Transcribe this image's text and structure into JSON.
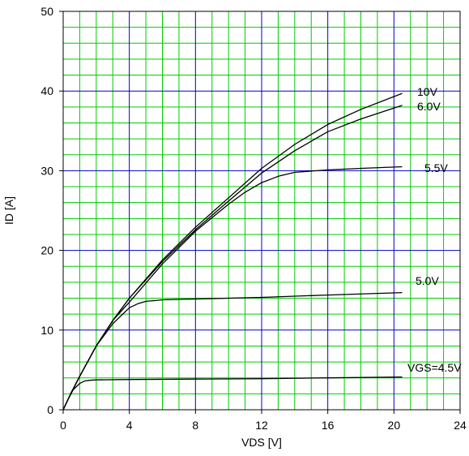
{
  "chart_data": {
    "type": "line",
    "xlabel": "VDS [V]",
    "ylabel": "ID [A]",
    "xlim": [
      0,
      24
    ],
    "ylim": [
      0,
      50
    ],
    "x_ticks": [
      "0",
      "4",
      "8",
      "12",
      "16",
      "20",
      "24"
    ],
    "y_ticks": [
      "0",
      "10",
      "20",
      "30",
      "40",
      "50"
    ],
    "grid": true,
    "minor_grid_color": "#00cc00",
    "major_grid_color": "#0000cc",
    "line_color": "#000000",
    "series": [
      {
        "name": "10V",
        "x": [
          0,
          0.5,
          1,
          2,
          3,
          4,
          6,
          8,
          10,
          12,
          14,
          16,
          18,
          20.5
        ],
        "y": [
          0,
          2.2,
          4.2,
          8,
          11.2,
          14,
          18.8,
          22.9,
          26.6,
          30.3,
          33.3,
          35.8,
          37.7,
          39.7
        ]
      },
      {
        "name": "6.0V",
        "x": [
          0,
          0.5,
          1,
          2,
          3,
          4,
          6,
          8,
          10,
          12,
          14,
          16,
          18,
          20.5
        ],
        "y": [
          0,
          2.2,
          4.2,
          8,
          11.2,
          14,
          18.6,
          22.6,
          26.2,
          29.7,
          32.5,
          34.9,
          36.5,
          38.2
        ]
      },
      {
        "name": "5.5V",
        "x": [
          0,
          0.5,
          1,
          2,
          3,
          4,
          6,
          8,
          10,
          11,
          12,
          13,
          14,
          16,
          18,
          20.5
        ],
        "y": [
          0,
          2.2,
          4.2,
          8,
          11.2,
          13.5,
          18.3,
          22.4,
          25.8,
          27.3,
          28.5,
          29.3,
          29.8,
          30.1,
          30.3,
          30.5
        ]
      },
      {
        "name": "5.0V",
        "x": [
          0,
          0.5,
          1,
          2,
          3,
          4,
          4.5,
          5,
          5.5,
          6,
          8,
          12,
          16,
          20.5
        ],
        "y": [
          0,
          2.2,
          4.2,
          8,
          10.8,
          12.8,
          13.3,
          13.6,
          13.7,
          13.8,
          13.9,
          14.1,
          14.4,
          14.7
        ]
      },
      {
        "name": "VGS=4.5V",
        "x": [
          0,
          0.3,
          0.6,
          1,
          1.3,
          1.6,
          2,
          4,
          8,
          12,
          16,
          20.5
        ],
        "y": [
          0,
          1.3,
          2.5,
          3.3,
          3.6,
          3.7,
          3.75,
          3.8,
          3.85,
          3.9,
          4.0,
          4.1
        ]
      }
    ]
  }
}
